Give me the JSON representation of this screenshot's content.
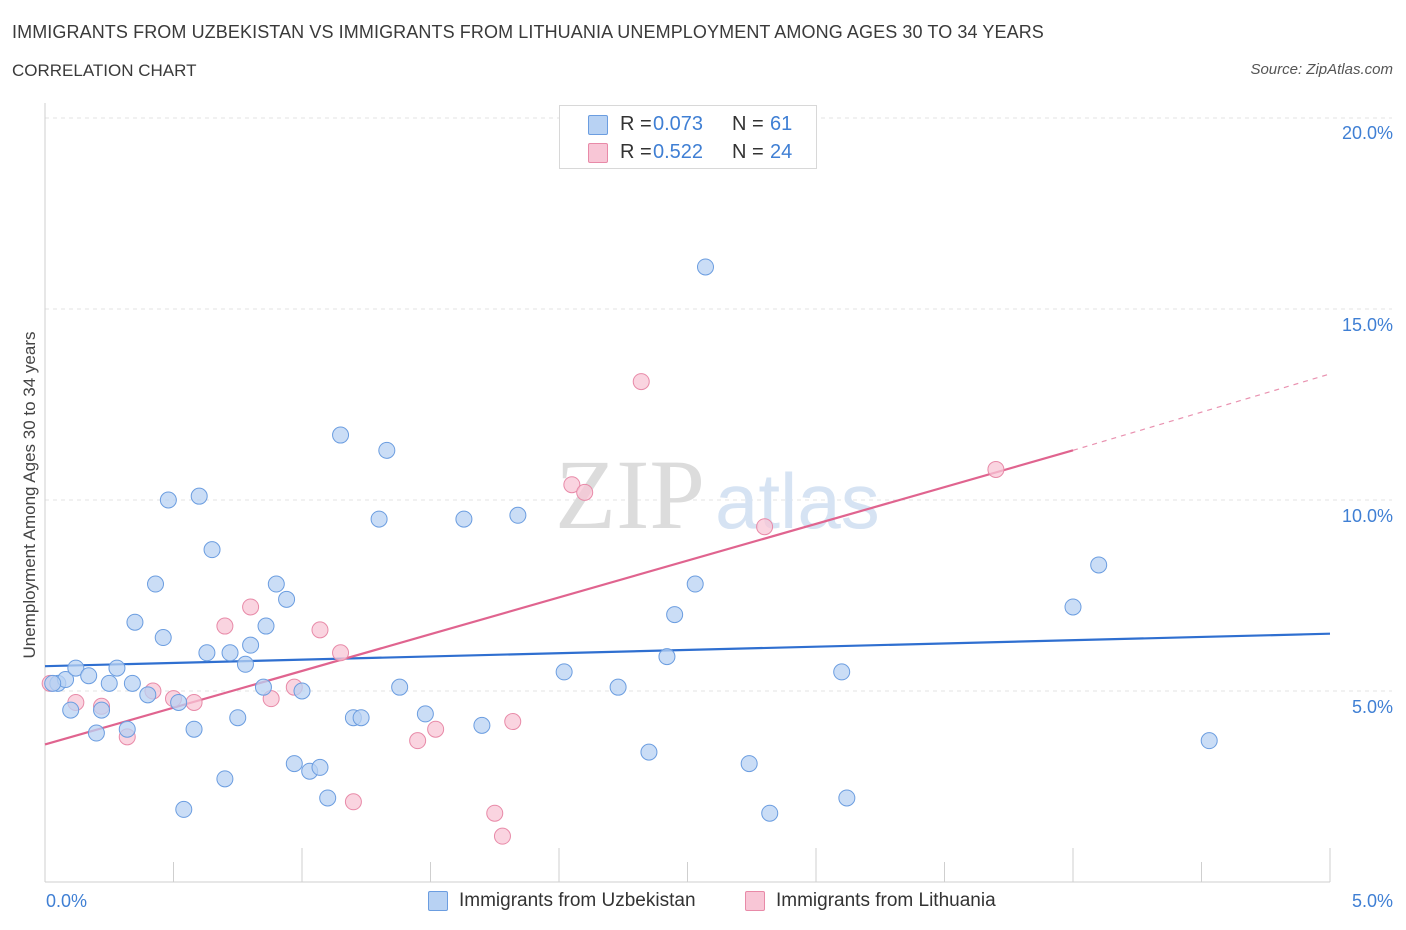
{
  "header": {
    "title": "IMMIGRANTS FROM UZBEKISTAN VS IMMIGRANTS FROM LITHUANIA UNEMPLOYMENT AMONG AGES 30 TO 34 YEARS",
    "subtitle": "CORRELATION CHART",
    "source": "Source: ZipAtlas.com"
  },
  "watermark": {
    "zip": "ZIP",
    "atlas": "atlas"
  },
  "legend_top": {
    "r_label": "R =",
    "n_label": "N =",
    "series1": {
      "r": "0.073",
      "n": "61"
    },
    "series2": {
      "r": "0.522",
      "n": "24"
    }
  },
  "legend_bottom": {
    "series1": "Immigrants from Uzbekistan",
    "series2": "Immigrants from Lithuania"
  },
  "colors": {
    "series1_fill": "#b8d2f3",
    "series1_stroke": "#6b9de0",
    "series1_line": "#2f6fd0",
    "series2_fill": "#f8c6d6",
    "series2_stroke": "#e88aa8",
    "series2_line": "#e0648f",
    "tick_text": "#3f7fd4"
  },
  "chart_data": {
    "type": "scatter",
    "title": "IMMIGRANTS FROM UZBEKISTAN VS IMMIGRANTS FROM LITHUANIA UNEMPLOYMENT AMONG AGES 30 TO 34 YEARS",
    "xlabel": "",
    "ylabel": "Unemployment Among Ages 30 to 34 years",
    "xlim": [
      0,
      5
    ],
    "ylim": [
      0,
      20
    ],
    "x_tick_labels": [
      "0.0%",
      "5.0%"
    ],
    "y_tick_labels": [
      "5.0%",
      "10.0%",
      "15.0%",
      "20.0%"
    ],
    "y_ticks": [
      5,
      10,
      15,
      20
    ],
    "grid": "horizontal dashed",
    "legend_placement": "top-center and bottom",
    "series": [
      {
        "name": "Immigrants from Uzbekistan",
        "points": [
          [
            0.05,
            5.2
          ],
          [
            0.08,
            5.3
          ],
          [
            0.1,
            4.5
          ],
          [
            0.12,
            5.6
          ],
          [
            0.17,
            5.4
          ],
          [
            0.2,
            3.9
          ],
          [
            0.22,
            4.5
          ],
          [
            0.25,
            5.2
          ],
          [
            0.28,
            5.6
          ],
          [
            0.32,
            4.0
          ],
          [
            0.34,
            5.2
          ],
          [
            0.35,
            6.8
          ],
          [
            0.4,
            4.9
          ],
          [
            0.43,
            7.8
          ],
          [
            0.46,
            6.4
          ],
          [
            0.48,
            10.0
          ],
          [
            0.52,
            4.7
          ],
          [
            0.54,
            1.9
          ],
          [
            0.58,
            4.0
          ],
          [
            0.6,
            10.1
          ],
          [
            0.63,
            6.0
          ],
          [
            0.65,
            8.7
          ],
          [
            0.7,
            2.7
          ],
          [
            0.72,
            6.0
          ],
          [
            0.75,
            4.3
          ],
          [
            0.78,
            5.7
          ],
          [
            0.8,
            6.2
          ],
          [
            0.85,
            5.1
          ],
          [
            0.86,
            6.7
          ],
          [
            0.9,
            7.8
          ],
          [
            0.94,
            7.4
          ],
          [
            0.97,
            3.1
          ],
          [
            1.0,
            5.0
          ],
          [
            1.03,
            2.9
          ],
          [
            1.07,
            3.0
          ],
          [
            1.1,
            2.2
          ],
          [
            1.15,
            11.7
          ],
          [
            1.2,
            4.3
          ],
          [
            1.23,
            4.3
          ],
          [
            1.3,
            9.5
          ],
          [
            1.33,
            11.3
          ],
          [
            1.38,
            5.1
          ],
          [
            1.48,
            4.4
          ],
          [
            1.63,
            9.5
          ],
          [
            1.7,
            4.1
          ],
          [
            1.84,
            9.6
          ],
          [
            2.02,
            5.5
          ],
          [
            2.23,
            5.1
          ],
          [
            2.35,
            3.4
          ],
          [
            2.42,
            5.9
          ],
          [
            2.45,
            7.0
          ],
          [
            2.53,
            7.8
          ],
          [
            2.57,
            16.1
          ],
          [
            2.74,
            3.1
          ],
          [
            2.82,
            1.8
          ],
          [
            3.1,
            5.5
          ],
          [
            3.12,
            2.2
          ],
          [
            4.0,
            7.2
          ],
          [
            4.1,
            8.3
          ],
          [
            4.53,
            3.7
          ],
          [
            0.03,
            5.2
          ]
        ]
      },
      {
        "name": "Immigrants from Lithuania",
        "points": [
          [
            0.02,
            5.2
          ],
          [
            0.12,
            4.7
          ],
          [
            0.22,
            4.6
          ],
          [
            0.32,
            3.8
          ],
          [
            0.42,
            5.0
          ],
          [
            0.5,
            4.8
          ],
          [
            0.58,
            4.7
          ],
          [
            0.7,
            6.7
          ],
          [
            0.8,
            7.2
          ],
          [
            0.88,
            4.8
          ],
          [
            0.97,
            5.1
          ],
          [
            1.07,
            6.6
          ],
          [
            1.15,
            6.0
          ],
          [
            1.2,
            2.1
          ],
          [
            1.45,
            3.7
          ],
          [
            1.52,
            4.0
          ],
          [
            1.75,
            1.8
          ],
          [
            1.78,
            1.2
          ],
          [
            1.82,
            4.2
          ],
          [
            2.05,
            10.4
          ],
          [
            2.1,
            10.2
          ],
          [
            2.32,
            13.1
          ],
          [
            2.8,
            9.3
          ],
          [
            3.7,
            10.8
          ]
        ]
      }
    ],
    "trendlines": [
      {
        "series": "Immigrants from Uzbekistan",
        "x": [
          0,
          5
        ],
        "y": [
          5.65,
          6.5
        ]
      },
      {
        "series": "Immigrants from Lithuania",
        "x": [
          0,
          4
        ],
        "y": [
          3.6,
          11.3
        ],
        "dashed_extension_to": [
          5,
          13.3
        ]
      }
    ]
  }
}
